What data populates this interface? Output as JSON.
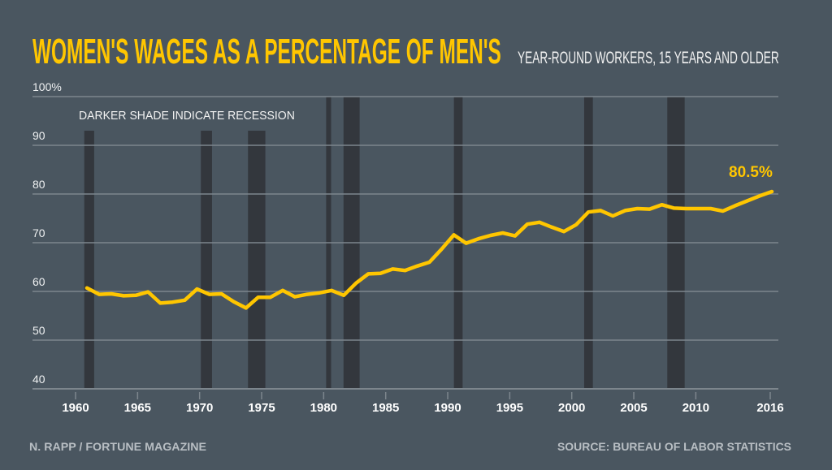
{
  "chart_data": {
    "type": "line",
    "title": "WOMEN'S WAGES AS A PERCENTAGE OF MEN'S",
    "subtitle": "YEAR-ROUND WORKERS, 15 YEARS AND OLDER",
    "note": "DARKER SHADE INDICATE RECESSION",
    "end_label": "80.5%",
    "credit": "N. RAPP / FORTUNE MAGAZINE",
    "source": "SOURCE: BUREAU OF LABOR STATISTICS",
    "ylim": [
      40,
      100
    ],
    "xlim": [
      1960,
      2016
    ],
    "grid": true,
    "y_ticks": [
      {
        "value": 100,
        "label": "100%"
      },
      {
        "value": 90,
        "label": "90"
      },
      {
        "value": 80,
        "label": "80"
      },
      {
        "value": 70,
        "label": "70"
      },
      {
        "value": 60,
        "label": "60"
      },
      {
        "value": 50,
        "label": "50"
      },
      {
        "value": 40,
        "label": "40"
      }
    ],
    "x_ticks": [
      {
        "value": 1960,
        "label": "1960"
      },
      {
        "value": 1965,
        "label": "1965"
      },
      {
        "value": 1970,
        "label": "1970"
      },
      {
        "value": 1975,
        "label": "1975"
      },
      {
        "value": 1980,
        "label": "1980"
      },
      {
        "value": 1985,
        "label": "1985"
      },
      {
        "value": 1990,
        "label": "1990"
      },
      {
        "value": 1995,
        "label": "1995"
      },
      {
        "value": 2000,
        "label": "2000"
      },
      {
        "value": 2005,
        "label": "2005"
      },
      {
        "value": 2010,
        "label": "2010"
      },
      {
        "value": 2016,
        "label": "2016"
      }
    ],
    "recessions": [
      [
        1960.7,
        1961.5
      ],
      [
        1970.1,
        1971.0
      ],
      [
        1973.9,
        1975.3
      ],
      [
        1980.2,
        1980.6
      ],
      [
        1981.6,
        1982.9
      ],
      [
        1990.5,
        1991.2
      ],
      [
        2001.0,
        2001.7
      ],
      [
        2007.7,
        2009.1
      ]
    ],
    "series": [
      {
        "color": "#ffc600",
        "x": [
          1960,
          1961,
          1962,
          1963,
          1964,
          1965,
          1966,
          1967,
          1968,
          1969,
          1970,
          1971,
          1972,
          1973,
          1974,
          1975,
          1976,
          1977,
          1978,
          1979,
          1980,
          1981,
          1982,
          1983,
          1984,
          1985,
          1986,
          1987,
          1988,
          1989,
          1990,
          1991,
          1992,
          1993,
          1994,
          1995,
          1996,
          1997,
          1998,
          1999,
          2000,
          2001,
          2002,
          2003,
          2004,
          2005,
          2006,
          2007,
          2008,
          2009,
          2010,
          2011,
          2012,
          2013,
          2014,
          2015,
          2016
        ],
        "values": [
          60.7,
          59.4,
          59.5,
          59.1,
          59.2,
          59.9,
          57.6,
          57.8,
          58.2,
          60.5,
          59.4,
          59.5,
          57.9,
          56.6,
          58.8,
          58.8,
          60.2,
          58.9,
          59.4,
          59.7,
          60.2,
          59.2,
          61.7,
          63.6,
          63.7,
          64.6,
          64.3,
          65.2,
          66.0,
          68.7,
          71.6,
          69.9,
          70.8,
          71.5,
          72.0,
          71.4,
          73.8,
          74.2,
          73.2,
          72.3,
          73.7,
          76.3,
          76.6,
          75.5,
          76.6,
          77.0,
          76.9,
          77.8,
          77.1,
          77.0,
          77.0,
          77.0,
          76.5,
          77.6,
          78.6,
          79.6,
          80.5
        ]
      }
    ],
    "colors": {
      "background": "#4a5660",
      "recession": "#33373d",
      "grid": "#7d868d",
      "line": "#ffc600"
    }
  }
}
